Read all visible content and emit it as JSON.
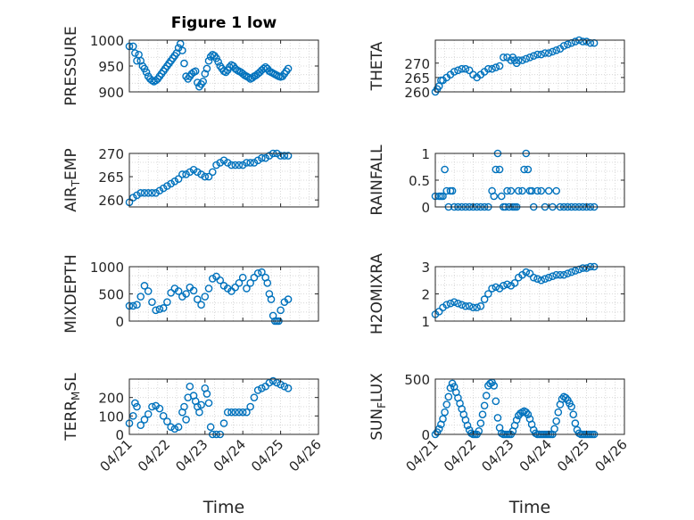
{
  "figure_title": "Figure 1 low",
  "xlabel": "Time",
  "x_ticks": [
    "04/21",
    "04/22",
    "04/23",
    "04/24",
    "04/25",
    "04/26"
  ],
  "marker_color": "#0072BD",
  "grid": "minor dotted",
  "chart_data": [
    {
      "type": "scatter",
      "ylabel": "PRESSURE",
      "ylim": [
        900,
        1000
      ],
      "yticks": [
        "900",
        "950",
        "1000"
      ],
      "x": [
        0.0,
        0.1,
        0.15,
        0.2,
        0.25,
        0.3,
        0.35,
        0.4,
        0.45,
        0.5,
        0.55,
        0.6,
        0.65,
        0.7,
        0.75,
        0.8,
        0.85,
        0.9,
        0.95,
        1.0,
        1.05,
        1.1,
        1.15,
        1.2,
        1.25,
        1.3,
        1.35,
        1.4,
        1.45,
        1.5,
        1.55,
        1.6,
        1.65,
        1.7,
        1.75,
        1.8,
        1.85,
        1.9,
        1.95,
        2.0,
        2.05,
        2.1,
        2.15,
        2.2,
        2.25,
        2.3,
        2.35,
        2.4,
        2.45,
        2.5,
        2.55,
        2.6,
        2.65,
        2.7,
        2.75,
        2.8,
        2.85,
        2.9,
        2.95,
        3.0,
        3.05,
        3.1,
        3.15,
        3.2,
        3.25,
        3.3,
        3.35,
        3.4,
        3.45,
        3.5,
        3.55,
        3.6,
        3.65,
        3.7,
        3.75,
        3.8,
        3.85,
        3.9,
        3.95,
        4.0,
        4.05,
        4.1,
        4.15,
        4.2
      ],
      "y": [
        988,
        988,
        975,
        960,
        972,
        960,
        950,
        945,
        938,
        930,
        925,
        922,
        920,
        922,
        925,
        930,
        935,
        940,
        945,
        950,
        955,
        960,
        965,
        970,
        975,
        985,
        993,
        980,
        955,
        930,
        925,
        930,
        935,
        938,
        940,
        918,
        910,
        915,
        920,
        935,
        945,
        960,
        968,
        972,
        970,
        965,
        958,
        950,
        945,
        940,
        938,
        942,
        948,
        952,
        950,
        945,
        942,
        940,
        938,
        935,
        932,
        930,
        928,
        925,
        927,
        930,
        932,
        935,
        938,
        942,
        945,
        948,
        945,
        940,
        938,
        936,
        934,
        932,
        930,
        929,
        930,
        935,
        940,
        945
      ]
    },
    {
      "type": "scatter",
      "ylabel": "THETA",
      "ylim": [
        260,
        278
      ],
      "yticks": [
        "260",
        "265",
        "270"
      ],
      "x": [
        0.0,
        0.05,
        0.1,
        0.15,
        0.2,
        0.3,
        0.4,
        0.5,
        0.6,
        0.7,
        0.8,
        0.9,
        1.0,
        1.1,
        1.2,
        1.3,
        1.4,
        1.5,
        1.6,
        1.7,
        1.8,
        1.9,
        2.0,
        2.05,
        2.1,
        2.15,
        2.2,
        2.3,
        2.4,
        2.5,
        2.6,
        2.7,
        2.8,
        2.9,
        3.0,
        3.1,
        3.2,
        3.3,
        3.4,
        3.5,
        3.6,
        3.7,
        3.8,
        3.9,
        4.0,
        4.1,
        4.2
      ],
      "y": [
        260,
        261,
        262,
        264,
        264,
        265,
        266,
        267,
        267.5,
        268,
        268,
        267.5,
        266,
        265,
        266,
        267,
        268,
        268,
        268.5,
        269,
        272,
        272,
        271,
        272,
        271,
        270,
        271,
        271,
        271.5,
        272,
        272.5,
        273,
        273,
        273.5,
        273.5,
        274,
        274.5,
        275,
        276,
        276.5,
        277,
        277.5,
        278,
        277.5,
        277.5,
        277,
        277
      ]
    },
    {
      "type": "scatter",
      "ylabel": "AIR_TEMP",
      "ylim": [
        258.5,
        270
      ],
      "yticks": [
        "260",
        "265",
        "270"
      ],
      "x": [
        0.0,
        0.1,
        0.2,
        0.3,
        0.4,
        0.5,
        0.6,
        0.7,
        0.8,
        0.9,
        1.0,
        1.1,
        1.2,
        1.3,
        1.4,
        1.5,
        1.6,
        1.7,
        1.8,
        1.9,
        2.0,
        2.1,
        2.2,
        2.3,
        2.4,
        2.5,
        2.6,
        2.7,
        2.8,
        2.9,
        3.0,
        3.1,
        3.2,
        3.3,
        3.4,
        3.5,
        3.6,
        3.7,
        3.8,
        3.9,
        4.0,
        4.1,
        4.2
      ],
      "y": [
        259.5,
        260.5,
        261,
        261.5,
        261.5,
        261.5,
        261.5,
        261.5,
        262,
        262.5,
        263,
        263.5,
        264,
        264.5,
        265.5,
        265.5,
        266,
        266.5,
        266,
        265.5,
        265,
        265,
        266,
        267.5,
        268,
        268.5,
        268,
        267.5,
        267.5,
        267.5,
        267.5,
        268,
        268,
        268,
        268.5,
        269,
        269,
        269.5,
        270,
        270,
        269.5,
        269.5,
        269.5
      ]
    },
    {
      "type": "scatter",
      "ylabel": "RAINFALL",
      "ylim": [
        0,
        1
      ],
      "yticks": [
        "0",
        "0.5",
        "1"
      ],
      "x": [
        0.0,
        0.1,
        0.15,
        0.2,
        0.25,
        0.3,
        0.35,
        0.4,
        0.45,
        0.5,
        0.6,
        0.7,
        0.8,
        0.9,
        1.0,
        1.1,
        1.2,
        1.3,
        1.4,
        1.5,
        1.55,
        1.6,
        1.65,
        1.7,
        1.75,
        1.8,
        1.85,
        1.9,
        1.95,
        2.0,
        2.05,
        2.1,
        2.15,
        2.2,
        2.3,
        2.35,
        2.4,
        2.45,
        2.5,
        2.55,
        2.6,
        2.7,
        2.8,
        2.9,
        3.0,
        3.1,
        3.2,
        3.3,
        3.4,
        3.5,
        3.6,
        3.7,
        3.8,
        3.9,
        4.0,
        4.1,
        4.2
      ],
      "y": [
        0.2,
        0.2,
        0.2,
        0.2,
        0.7,
        0.3,
        0,
        0.3,
        0.3,
        0,
        0,
        0,
        0,
        0,
        0,
        0,
        0,
        0,
        0,
        0.3,
        0.2,
        0.7,
        1.0,
        0.7,
        0.2,
        0,
        0,
        0.3,
        0,
        0.3,
        0,
        0,
        0,
        0.3,
        0.3,
        0.7,
        1.0,
        0.7,
        0.3,
        0.3,
        0,
        0.3,
        0.3,
        0,
        0.3,
        0,
        0.3,
        0,
        0,
        0,
        0,
        0,
        0,
        0,
        0,
        0,
        0
      ]
    },
    {
      "type": "scatter",
      "ylabel": "MIXDEPTH",
      "ylim": [
        0,
        1000
      ],
      "yticks": [
        "0",
        "500",
        "1000"
      ],
      "x": [
        0.0,
        0.1,
        0.2,
        0.3,
        0.4,
        0.5,
        0.6,
        0.7,
        0.8,
        0.9,
        1.0,
        1.1,
        1.2,
        1.3,
        1.4,
        1.5,
        1.6,
        1.7,
        1.8,
        1.9,
        2.0,
        2.1,
        2.2,
        2.3,
        2.4,
        2.5,
        2.6,
        2.7,
        2.8,
        2.9,
        3.0,
        3.1,
        3.2,
        3.3,
        3.4,
        3.5,
        3.6,
        3.65,
        3.7,
        3.75,
        3.8,
        3.85,
        3.9,
        3.95,
        4.0,
        4.1,
        4.2
      ],
      "y": [
        280,
        280,
        300,
        450,
        650,
        550,
        350,
        200,
        220,
        240,
        350,
        520,
        600,
        550,
        450,
        500,
        620,
        560,
        400,
        300,
        450,
        600,
        780,
        820,
        750,
        650,
        600,
        550,
        620,
        700,
        800,
        600,
        700,
        800,
        880,
        900,
        800,
        700,
        500,
        400,
        100,
        0,
        0,
        0,
        200,
        350,
        400
      ]
    },
    {
      "type": "scatter",
      "ylabel": "H2OMIXRA",
      "ylim": [
        1,
        3
      ],
      "yticks": [
        "1",
        "2",
        "3"
      ],
      "x": [
        0.0,
        0.1,
        0.2,
        0.3,
        0.4,
        0.5,
        0.6,
        0.7,
        0.8,
        0.9,
        1.0,
        1.1,
        1.2,
        1.3,
        1.4,
        1.5,
        1.6,
        1.7,
        1.8,
        1.9,
        2.0,
        2.1,
        2.2,
        2.3,
        2.4,
        2.5,
        2.6,
        2.7,
        2.8,
        2.9,
        3.0,
        3.1,
        3.2,
        3.3,
        3.4,
        3.5,
        3.6,
        3.7,
        3.8,
        3.9,
        4.0,
        4.1,
        4.2
      ],
      "y": [
        1.25,
        1.35,
        1.5,
        1.6,
        1.65,
        1.7,
        1.65,
        1.6,
        1.55,
        1.55,
        1.5,
        1.5,
        1.55,
        1.8,
        2.0,
        2.2,
        2.25,
        2.2,
        2.3,
        2.35,
        2.3,
        2.4,
        2.6,
        2.7,
        2.8,
        2.75,
        2.6,
        2.55,
        2.5,
        2.55,
        2.6,
        2.65,
        2.7,
        2.7,
        2.7,
        2.75,
        2.8,
        2.85,
        2.9,
        2.95,
        2.95,
        3.0,
        3.0
      ]
    },
    {
      "type": "scatter",
      "ylabel": "TERR_MSL",
      "ylim": [
        0,
        300
      ],
      "yticks": [
        "0",
        "100",
        "200"
      ],
      "x": [
        0.0,
        0.1,
        0.15,
        0.2,
        0.3,
        0.4,
        0.5,
        0.6,
        0.7,
        0.8,
        0.9,
        1.0,
        1.1,
        1.2,
        1.3,
        1.4,
        1.45,
        1.5,
        1.55,
        1.6,
        1.7,
        1.75,
        1.8,
        1.85,
        1.9,
        2.0,
        2.05,
        2.1,
        2.15,
        2.2,
        2.3,
        2.4,
        2.5,
        2.6,
        2.7,
        2.8,
        2.9,
        3.0,
        3.1,
        3.2,
        3.3,
        3.4,
        3.5,
        3.6,
        3.7,
        3.8,
        3.9,
        4.0,
        4.1,
        4.2
      ],
      "y": [
        60,
        100,
        170,
        150,
        50,
        80,
        110,
        150,
        155,
        140,
        100,
        70,
        40,
        30,
        40,
        120,
        150,
        80,
        200,
        260,
        210,
        180,
        150,
        120,
        160,
        250,
        220,
        170,
        40,
        0,
        0,
        0,
        60,
        120,
        120,
        120,
        120,
        120,
        120,
        150,
        200,
        240,
        250,
        260,
        280,
        290,
        280,
        270,
        260,
        250
      ]
    },
    {
      "type": "scatter",
      "ylabel": "SUN_FLUX",
      "ylim": [
        0,
        500
      ],
      "yticks": [
        "0",
        "500"
      ],
      "x": [
        0.0,
        0.05,
        0.1,
        0.15,
        0.2,
        0.25,
        0.3,
        0.35,
        0.4,
        0.45,
        0.5,
        0.55,
        0.6,
        0.65,
        0.7,
        0.75,
        0.8,
        0.85,
        0.9,
        0.95,
        1.0,
        1.05,
        1.1,
        1.15,
        1.2,
        1.25,
        1.3,
        1.35,
        1.4,
        1.45,
        1.5,
        1.55,
        1.6,
        1.65,
        1.7,
        1.75,
        1.8,
        1.85,
        1.9,
        1.95,
        2.0,
        2.05,
        2.1,
        2.15,
        2.2,
        2.25,
        2.3,
        2.35,
        2.4,
        2.45,
        2.5,
        2.55,
        2.6,
        2.65,
        2.7,
        2.75,
        2.8,
        2.85,
        2.9,
        2.95,
        3.0,
        3.05,
        3.1,
        3.15,
        3.2,
        3.25,
        3.3,
        3.35,
        3.4,
        3.45,
        3.5,
        3.55,
        3.6,
        3.65,
        3.7,
        3.75,
        3.8,
        3.85,
        3.9,
        3.95,
        4.0,
        4.05,
        4.1,
        4.15,
        4.2
      ],
      "y": [
        0,
        20,
        50,
        90,
        140,
        200,
        270,
        340,
        420,
        460,
        430,
        380,
        330,
        280,
        230,
        180,
        130,
        80,
        40,
        10,
        0,
        0,
        0,
        30,
        100,
        180,
        260,
        350,
        440,
        460,
        470,
        440,
        300,
        150,
        60,
        10,
        0,
        0,
        0,
        0,
        0,
        30,
        80,
        130,
        170,
        190,
        200,
        210,
        200,
        180,
        140,
        90,
        40,
        10,
        0,
        0,
        0,
        0,
        0,
        0,
        0,
        0,
        0,
        50,
        120,
        200,
        270,
        320,
        340,
        330,
        310,
        280,
        250,
        180,
        100,
        40,
        10,
        0,
        0,
        0,
        0,
        0,
        0,
        0,
        0
      ]
    }
  ]
}
